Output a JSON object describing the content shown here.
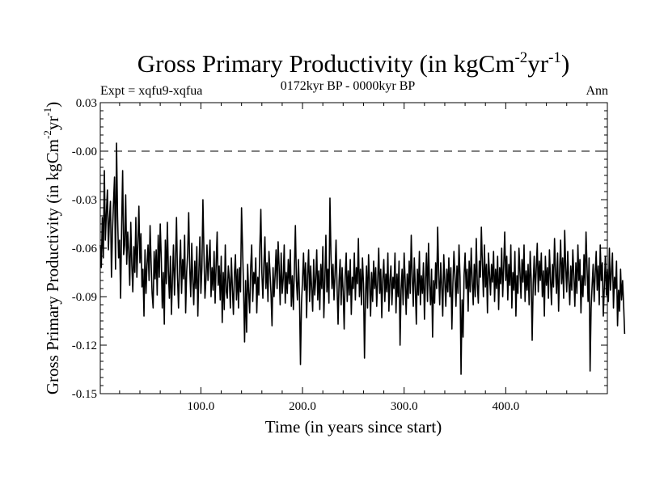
{
  "chart_data": {
    "type": "line",
    "title": {
      "main": "Gross Primary Productivity (in kgCm",
      "sup1": "-2",
      "mid": "yr",
      "sup2": "-1",
      "end": ")"
    },
    "subtitle_left": "Expt = xqfu9-xqfua",
    "subtitle_center": "0172kyr BP - 0000kyr BP",
    "subtitle_right": "Ann",
    "xlabel": "Time (in years since start)",
    "ylabel": {
      "main": "Gross Primary Productivity (in kgCm",
      "sup1": "-2",
      "mid": "yr",
      "sup2": "-1",
      "end": ")"
    },
    "xlim": [
      1,
      500
    ],
    "ylim": [
      -0.15,
      0.03
    ],
    "x_ticks": [
      {
        "value": 100,
        "label": "100.0"
      },
      {
        "value": 200,
        "label": "200.0"
      },
      {
        "value": 300,
        "label": "300.0"
      },
      {
        "value": 400,
        "label": "400.0"
      }
    ],
    "y_ticks": [
      {
        "value": 0.03,
        "label": "0.03"
      },
      {
        "value": 0.0,
        "label": "-0.00"
      },
      {
        "value": -0.03,
        "label": "-0.03"
      },
      {
        "value": -0.06,
        "label": "-0.06"
      },
      {
        "value": -0.09,
        "label": "-0.09"
      },
      {
        "value": -0.12,
        "label": "-0.12"
      },
      {
        "value": -0.15,
        "label": "-0.15"
      }
    ],
    "reference_line": {
      "y": 0.0,
      "style": "dashed"
    },
    "series": [
      {
        "name": "Ann",
        "x_start": 1,
        "x_step": 1,
        "values": [
          -0.058,
          -0.072,
          -0.041,
          -0.066,
          -0.012,
          -0.055,
          -0.038,
          -0.024,
          -0.061,
          -0.042,
          -0.031,
          -0.078,
          -0.05,
          -0.032,
          -0.016,
          -0.073,
          0.005,
          -0.04,
          -0.066,
          -0.055,
          -0.091,
          -0.047,
          -0.012,
          -0.064,
          -0.058,
          -0.027,
          -0.07,
          -0.05,
          -0.062,
          -0.083,
          -0.044,
          -0.07,
          -0.087,
          -0.059,
          -0.075,
          -0.041,
          -0.078,
          -0.057,
          -0.034,
          -0.069,
          -0.051,
          -0.084,
          -0.073,
          -0.102,
          -0.061,
          -0.088,
          -0.07,
          -0.058,
          -0.08,
          -0.046,
          -0.069,
          -0.088,
          -0.097,
          -0.062,
          -0.079,
          -0.061,
          -0.089,
          -0.052,
          -0.078,
          -0.045,
          -0.066,
          -0.097,
          -0.075,
          -0.107,
          -0.055,
          -0.082,
          -0.044,
          -0.074,
          -0.091,
          -0.065,
          -0.101,
          -0.079,
          -0.058,
          -0.089,
          -0.068,
          -0.041,
          -0.078,
          -0.097,
          -0.07,
          -0.055,
          -0.088,
          -0.067,
          -0.079,
          -0.052,
          -0.1,
          -0.075,
          -0.063,
          -0.038,
          -0.072,
          -0.09,
          -0.057,
          -0.08,
          -0.095,
          -0.068,
          -0.085,
          -0.059,
          -0.102,
          -0.075,
          -0.053,
          -0.088,
          -0.072,
          -0.03,
          -0.063,
          -0.091,
          -0.079,
          -0.058,
          -0.08,
          -0.067,
          -0.055,
          -0.09,
          -0.072,
          -0.086,
          -0.062,
          -0.094,
          -0.07,
          -0.05,
          -0.083,
          -0.071,
          -0.092,
          -0.065,
          -0.106,
          -0.075,
          -0.098,
          -0.058,
          -0.087,
          -0.091,
          -0.071,
          -0.079,
          -0.097,
          -0.066,
          -0.085,
          -0.101,
          -0.076,
          -0.064,
          -0.092,
          -0.073,
          -0.097,
          -0.072,
          -0.087,
          -0.035,
          -0.06,
          -0.085,
          -0.118,
          -0.08,
          -0.112,
          -0.07,
          -0.087,
          -0.1,
          -0.072,
          -0.058,
          -0.093,
          -0.075,
          -0.082,
          -0.066,
          -0.1,
          -0.078,
          -0.089,
          -0.06,
          -0.036,
          -0.075,
          -0.091,
          -0.07,
          -0.053,
          -0.085,
          -0.069,
          -0.093,
          -0.062,
          -0.075,
          -0.088,
          -0.108,
          -0.072,
          -0.09,
          -0.077,
          -0.061,
          -0.085,
          -0.056,
          -0.072,
          -0.095,
          -0.063,
          -0.088,
          -0.079,
          -0.058,
          -0.094,
          -0.075,
          -0.088,
          -0.067,
          -0.082,
          -0.061,
          -0.096,
          -0.077,
          -0.098,
          -0.073,
          -0.046,
          -0.08,
          -0.092,
          -0.067,
          -0.089,
          -0.132,
          -0.094,
          -0.08,
          -0.063,
          -0.086,
          -0.069,
          -0.103,
          -0.077,
          -0.061,
          -0.093,
          -0.071,
          -0.085,
          -0.099,
          -0.067,
          -0.089,
          -0.079,
          -0.061,
          -0.092,
          -0.074,
          -0.098,
          -0.07,
          -0.085,
          -0.059,
          -0.103,
          -0.08,
          -0.052,
          -0.087,
          -0.073,
          -0.094,
          -0.029,
          -0.064,
          -0.085,
          -0.07,
          -0.092,
          -0.076,
          -0.055,
          -0.084,
          -0.107,
          -0.08,
          -0.067,
          -0.095,
          -0.072,
          -0.087,
          -0.11,
          -0.077,
          -0.063,
          -0.093,
          -0.074,
          -0.089,
          -0.067,
          -0.101,
          -0.078,
          -0.085,
          -0.063,
          -0.092,
          -0.072,
          -0.082,
          -0.054,
          -0.09,
          -0.073,
          -0.095,
          -0.066,
          -0.082,
          -0.128,
          -0.089,
          -0.071,
          -0.097,
          -0.064,
          -0.081,
          -0.102,
          -0.075,
          -0.093,
          -0.068,
          -0.085,
          -0.072,
          -0.096,
          -0.08,
          -0.06,
          -0.088,
          -0.073,
          -0.103,
          -0.079,
          -0.067,
          -0.093,
          -0.076,
          -0.087,
          -0.063,
          -0.099,
          -0.08,
          -0.071,
          -0.095,
          -0.078,
          -0.085,
          -0.063,
          -0.1,
          -0.076,
          -0.09,
          -0.068,
          -0.12,
          -0.086,
          -0.073,
          -0.095,
          -0.063,
          -0.08,
          -0.101,
          -0.076,
          -0.091,
          -0.068,
          -0.088,
          -0.052,
          -0.078,
          -0.096,
          -0.066,
          -0.084,
          -0.107,
          -0.073,
          -0.089,
          -0.062,
          -0.095,
          -0.077,
          -0.088,
          -0.069,
          -0.104,
          -0.08,
          -0.063,
          -0.093,
          -0.057,
          -0.082,
          -0.095,
          -0.073,
          -0.115,
          -0.08,
          -0.094,
          -0.069,
          -0.085,
          -0.047,
          -0.076,
          -0.095,
          -0.069,
          -0.084,
          -0.102,
          -0.064,
          -0.08,
          -0.096,
          -0.073,
          -0.087,
          -0.066,
          -0.09,
          -0.072,
          -0.11,
          -0.082,
          -0.062,
          -0.077,
          -0.096,
          -0.071,
          -0.088,
          -0.058,
          -0.078,
          -0.138,
          -0.092,
          -0.115,
          -0.077,
          -0.063,
          -0.085,
          -0.073,
          -0.099,
          -0.068,
          -0.087,
          -0.06,
          -0.08,
          -0.095,
          -0.07,
          -0.09,
          -0.054,
          -0.082,
          -0.094,
          -0.068,
          -0.078,
          -0.047,
          -0.07,
          -0.09,
          -0.058,
          -0.084,
          -0.07,
          -0.1,
          -0.063,
          -0.076,
          -0.089,
          -0.07,
          -0.081,
          -0.062,
          -0.093,
          -0.073,
          -0.085,
          -0.065,
          -0.098,
          -0.072,
          -0.082,
          -0.06,
          -0.09,
          -0.071,
          -0.05,
          -0.08,
          -0.065,
          -0.092,
          -0.07,
          -0.083,
          -0.058,
          -0.097,
          -0.075,
          -0.086,
          -0.062,
          -0.102,
          -0.077,
          -0.088,
          -0.06,
          -0.075,
          -0.091,
          -0.067,
          -0.081,
          -0.058,
          -0.093,
          -0.074,
          -0.086,
          -0.07,
          -0.095,
          -0.062,
          -0.079,
          -0.117,
          -0.082,
          -0.065,
          -0.089,
          -0.073,
          -0.057,
          -0.087,
          -0.068,
          -0.08,
          -0.063,
          -0.09,
          -0.074,
          -0.102,
          -0.065,
          -0.083,
          -0.072,
          -0.091,
          -0.061,
          -0.079,
          -0.095,
          -0.07,
          -0.084,
          -0.054,
          -0.075,
          -0.088,
          -0.063,
          -0.099,
          -0.074,
          -0.055,
          -0.082,
          -0.066,
          -0.091,
          -0.049,
          -0.072,
          -0.087,
          -0.062,
          -0.08,
          -0.095,
          -0.071,
          -0.086,
          -0.061,
          -0.077,
          -0.096,
          -0.069,
          -0.088,
          -0.058,
          -0.08,
          -0.067,
          -0.1,
          -0.077,
          -0.09,
          -0.064,
          -0.083,
          -0.05,
          -0.072,
          -0.093,
          -0.066,
          -0.136,
          -0.097,
          -0.083,
          -0.07,
          -0.093,
          -0.076,
          -0.062,
          -0.086,
          -0.071,
          -0.095,
          -0.058,
          -0.08,
          -0.069,
          -0.102,
          -0.084,
          -0.065,
          -0.089,
          -0.073,
          -0.093,
          -0.06,
          -0.086,
          -0.075,
          -0.063,
          -0.097,
          -0.078,
          -0.085,
          -0.068,
          -0.108,
          -0.086,
          -0.099,
          -0.073,
          -0.092,
          -0.08,
          -0.095,
          -0.113
        ]
      }
    ]
  }
}
